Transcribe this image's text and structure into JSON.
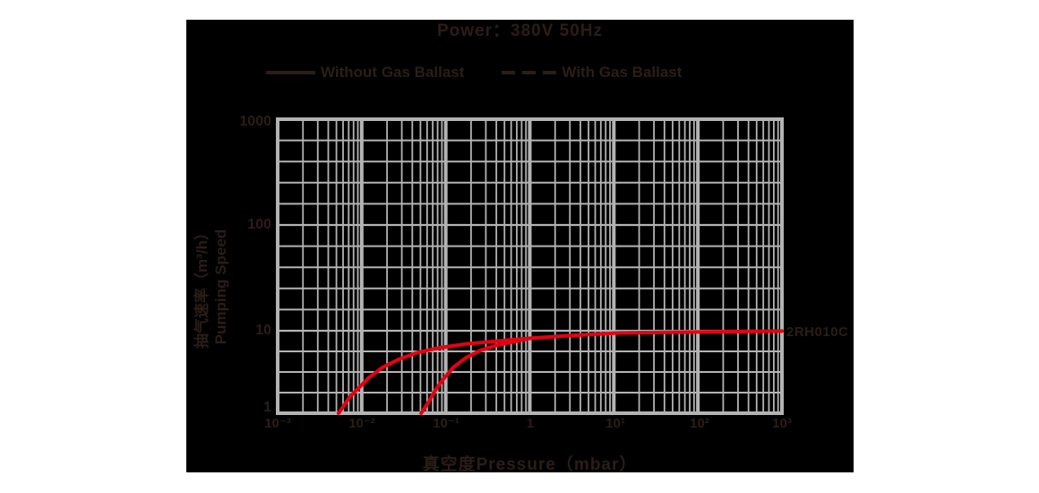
{
  "title": "Power：380V 50Hz",
  "legend": [
    {
      "label": "Without Gas Ballast",
      "style": "solid"
    },
    {
      "label": "With Gas Ballast",
      "style": "dashed"
    }
  ],
  "curve_label": "2RH010C",
  "colors": {
    "background": "#ffffff",
    "panel": "#000000",
    "grid": "#b3b3b3",
    "text": "#2b1d18",
    "curve": "#e60012"
  },
  "chart_data": {
    "type": "line",
    "title": "Power：380V 50Hz",
    "x_axis": {
      "label": "真空度Pressure（mbar）",
      "scale": "log",
      "range": [
        0.001,
        1000
      ],
      "tick_labels": [
        "10⁻³",
        "10⁻²",
        "10⁻¹",
        "1",
        "10¹",
        "10²",
        "10³"
      ],
      "grid": true
    },
    "y_axis": {
      "label_cn": "抽气速率（m³/h）",
      "label_en": "Pumping Speed",
      "scale": "log",
      "range": [
        1,
        1000
      ],
      "tick_labels": [
        "1000",
        "100",
        "10",
        "1"
      ],
      "grid": true
    },
    "series": [
      {
        "name": "Without Gas Ballast",
        "points": [
          [
            0.0053,
            1
          ],
          [
            0.0073,
            1.6
          ],
          [
            0.0091,
            2.0
          ],
          [
            0.0122,
            2.7
          ],
          [
            0.0177,
            3.6
          ],
          [
            0.0275,
            4.5
          ],
          [
            0.045,
            5.4
          ],
          [
            0.083,
            6.2
          ],
          [
            0.17,
            6.9
          ],
          [
            0.36,
            7.4
          ],
          [
            1,
            8.1
          ],
          [
            3.3,
            8.8
          ],
          [
            11,
            9.4
          ],
          [
            49,
            9.6
          ],
          [
            270,
            9.75
          ],
          [
            1000,
            9.9
          ]
        ]
      },
      {
        "name": "With Gas Ballast",
        "points": [
          [
            0.051,
            1
          ],
          [
            0.062,
            1.35
          ],
          [
            0.075,
            1.9
          ],
          [
            0.094,
            2.6
          ],
          [
            0.123,
            3.6
          ],
          [
            0.173,
            4.7
          ],
          [
            0.26,
            5.8
          ],
          [
            0.41,
            6.7
          ],
          [
            0.62,
            7.3
          ],
          [
            1,
            8.1
          ]
        ]
      }
    ]
  }
}
